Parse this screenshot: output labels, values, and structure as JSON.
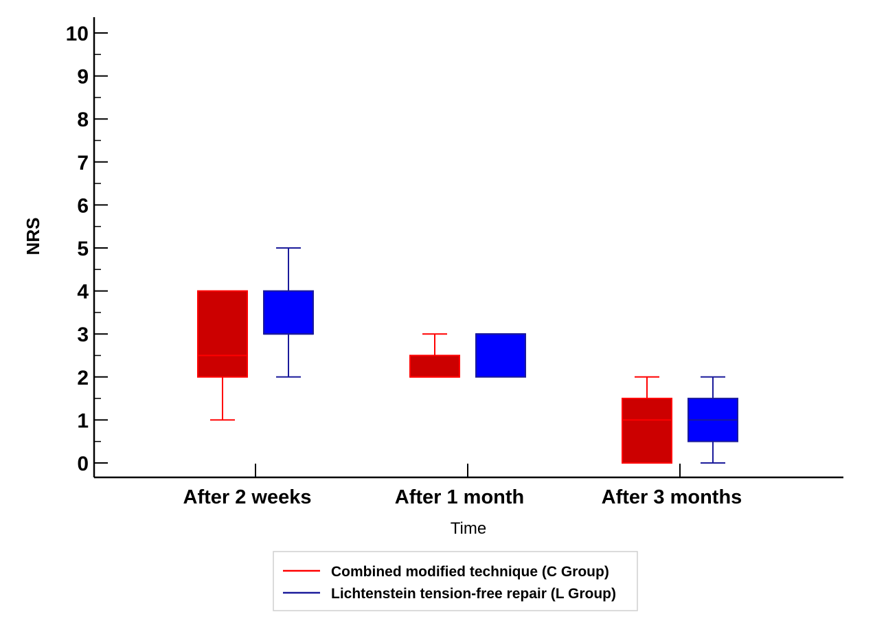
{
  "chart_data": {
    "type": "boxplot",
    "title": "",
    "xlabel": "Time",
    "ylabel": "NRS",
    "ylim": [
      0,
      10
    ],
    "yticks": [
      "0",
      "1",
      "2",
      "3",
      "4",
      "5",
      "6",
      "7",
      "8",
      "9",
      "10"
    ],
    "categories": [
      "After 2 weeks",
      "After 1 month",
      "After 3 months"
    ],
    "grid": false,
    "legend_position": "bottom-center",
    "series": [
      {
        "name": "Combined modified technique (C Group)",
        "line_color": "#ff0000",
        "fill_color": "#cc0000",
        "boxes": [
          {
            "min": 1,
            "q1": 2,
            "median": 2.5,
            "q3": 4,
            "max": 4
          },
          {
            "min": 2,
            "q1": 2,
            "median": 2,
            "q3": 2.5,
            "max": 3
          },
          {
            "min": 0,
            "q1": 0,
            "median": 1,
            "q3": 1.5,
            "max": 2
          }
        ]
      },
      {
        "name": "Lichtenstein tension-free repair (L Group)",
        "line_color": "#1a1a9a",
        "fill_color": "#0000ff",
        "boxes": [
          {
            "min": 2,
            "q1": 3,
            "median": 3,
            "q3": 4,
            "max": 5
          },
          {
            "min": 2,
            "q1": 2,
            "median": 3,
            "q3": 3,
            "max": 3
          },
          {
            "min": 0,
            "q1": 0.5,
            "median": 1,
            "q3": 1.5,
            "max": 2
          }
        ]
      }
    ]
  }
}
